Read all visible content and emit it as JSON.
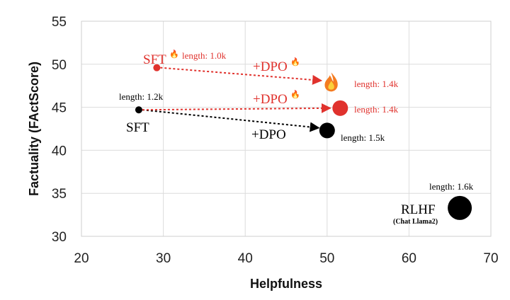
{
  "chart_data": {
    "type": "scatter",
    "xlabel": "Helpfulness",
    "ylabel": "Factuality (FActScore)",
    "xlim": [
      20,
      70
    ],
    "ylim": [
      30,
      55
    ],
    "xticks": [
      20,
      30,
      40,
      50,
      60,
      70
    ],
    "yticks": [
      30,
      35,
      40,
      45,
      50,
      55
    ],
    "grid": true,
    "colors": {
      "red": "#e0322d",
      "black": "#000000"
    },
    "points": [
      {
        "x": 27.0,
        "y": 44.7,
        "size": "small",
        "color": "#000000",
        "label": "SFT",
        "length": "length: 1.2k"
      },
      {
        "x": 50.0,
        "y": 42.3,
        "size": "medium",
        "color": "#000000",
        "label": "+DPO",
        "length": "length: 1.5k"
      },
      {
        "x": 29.2,
        "y": 49.6,
        "size": "small",
        "color": "#e0322d",
        "label": "SFT",
        "flame": true,
        "length": "length: 1.0k"
      },
      {
        "x": 50.5,
        "y": 47.9,
        "size": "icon",
        "color": "#e0322d",
        "label": "+DPO",
        "flame": true,
        "length": "length: 1.4k"
      },
      {
        "x": 51.6,
        "y": 44.9,
        "size": "medium",
        "color": "#e0322d",
        "label": "+DPO",
        "flame": true,
        "length": "length: 1.4k"
      },
      {
        "x": 66.2,
        "y": 33.3,
        "size": "large",
        "color": "#000000",
        "label": "RLHF",
        "sublabel": "(Chat Llama2)",
        "length": "length: 1.6k"
      }
    ],
    "arrows": [
      {
        "from": [
          27.0,
          44.7
        ],
        "to": [
          49.0,
          42.6
        ],
        "color": "#000000"
      },
      {
        "from": [
          29.2,
          49.6
        ],
        "to": [
          49.3,
          48.1
        ],
        "color": "#e0322d"
      },
      {
        "from": [
          27.0,
          44.7
        ],
        "to": [
          50.4,
          44.9
        ],
        "color": "#e0322d"
      }
    ]
  }
}
